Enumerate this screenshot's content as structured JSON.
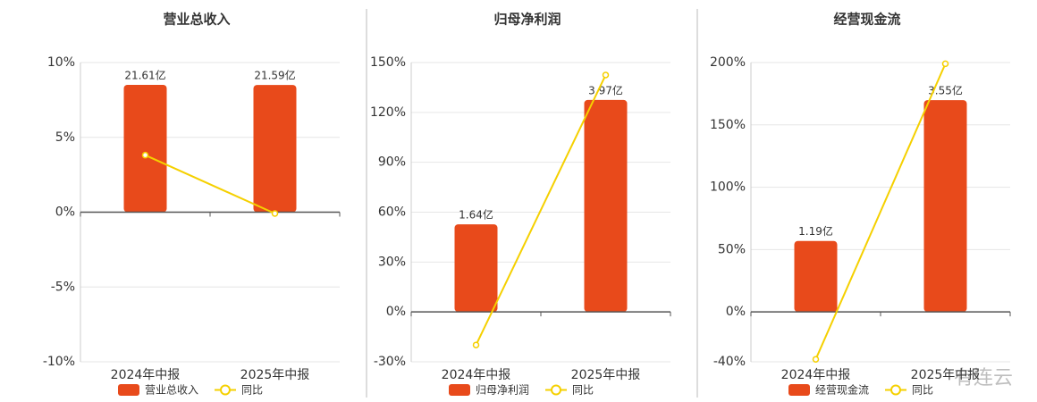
{
  "chart_data": [
    {
      "type": "combo",
      "title": "营业总收入",
      "categories": [
        "2024年中报",
        "2025年中报"
      ],
      "ylim": [
        -10,
        10
      ],
      "yticks": [
        {
          "value": -10,
          "label": "-10%"
        },
        {
          "value": -5,
          "label": "-5%"
        },
        {
          "value": 0,
          "label": "0%"
        },
        {
          "value": 5,
          "label": "5%"
        },
        {
          "value": 10,
          "label": "10%"
        }
      ],
      "y2lim": [
        -25.4,
        25.4
      ],
      "grid": true,
      "series": [
        {
          "name": "营业总收入",
          "type": "bar",
          "axis": "y2",
          "color": "#e84a1b",
          "values": [
            21.61,
            21.59
          ],
          "value_labels": [
            "21.61亿",
            "21.59亿"
          ]
        },
        {
          "name": "同比",
          "type": "line",
          "color": "#f5d000",
          "values": [
            3.81,
            -0.09
          ]
        }
      ]
    },
    {
      "type": "combo",
      "title": "归母净利润",
      "categories": [
        "2024年中报",
        "2025年中报"
      ],
      "ylim": [
        -30,
        150
      ],
      "yticks": [
        {
          "value": -30,
          "label": "-30%"
        },
        {
          "value": 0,
          "label": "0%"
        },
        {
          "value": 30,
          "label": "30%"
        },
        {
          "value": 60,
          "label": "60%"
        },
        {
          "value": 90,
          "label": "90%"
        },
        {
          "value": 120,
          "label": "120%"
        },
        {
          "value": 150,
          "label": "150%"
        }
      ],
      "y2lim": [
        -0.934,
        4.67
      ],
      "grid": true,
      "series": [
        {
          "name": "归母净利润",
          "type": "bar",
          "axis": "y2",
          "color": "#e84a1b",
          "values": [
            1.64,
            3.97
          ],
          "value_labels": [
            "1.64亿",
            "3.97亿"
          ]
        },
        {
          "name": "同比",
          "type": "line",
          "color": "#f5d000",
          "values": [
            -19.9,
            142.5
          ]
        }
      ]
    },
    {
      "type": "combo",
      "title": "经营现金流",
      "categories": [
        "2024年中报",
        "2025年中报"
      ],
      "ylim": [
        -40,
        200
      ],
      "yticks": [
        {
          "value": -40,
          "label": "-40%"
        },
        {
          "value": 0,
          "label": "0%"
        },
        {
          "value": 50,
          "label": "50%"
        },
        {
          "value": 100,
          "label": "100%"
        },
        {
          "value": 150,
          "label": "150%"
        },
        {
          "value": 200,
          "label": "200%"
        }
      ],
      "y2lim": [
        -0.836,
        4.18
      ],
      "grid": true,
      "series": [
        {
          "name": "经营现金流",
          "type": "bar",
          "axis": "y2",
          "color": "#e84a1b",
          "values": [
            1.19,
            3.55
          ],
          "value_labels": [
            "1.19亿",
            "3.55亿"
          ]
        },
        {
          "name": "同比",
          "type": "line",
          "color": "#f5d000",
          "values": [
            -38,
            199
          ]
        }
      ]
    }
  ],
  "watermark": "有连云"
}
